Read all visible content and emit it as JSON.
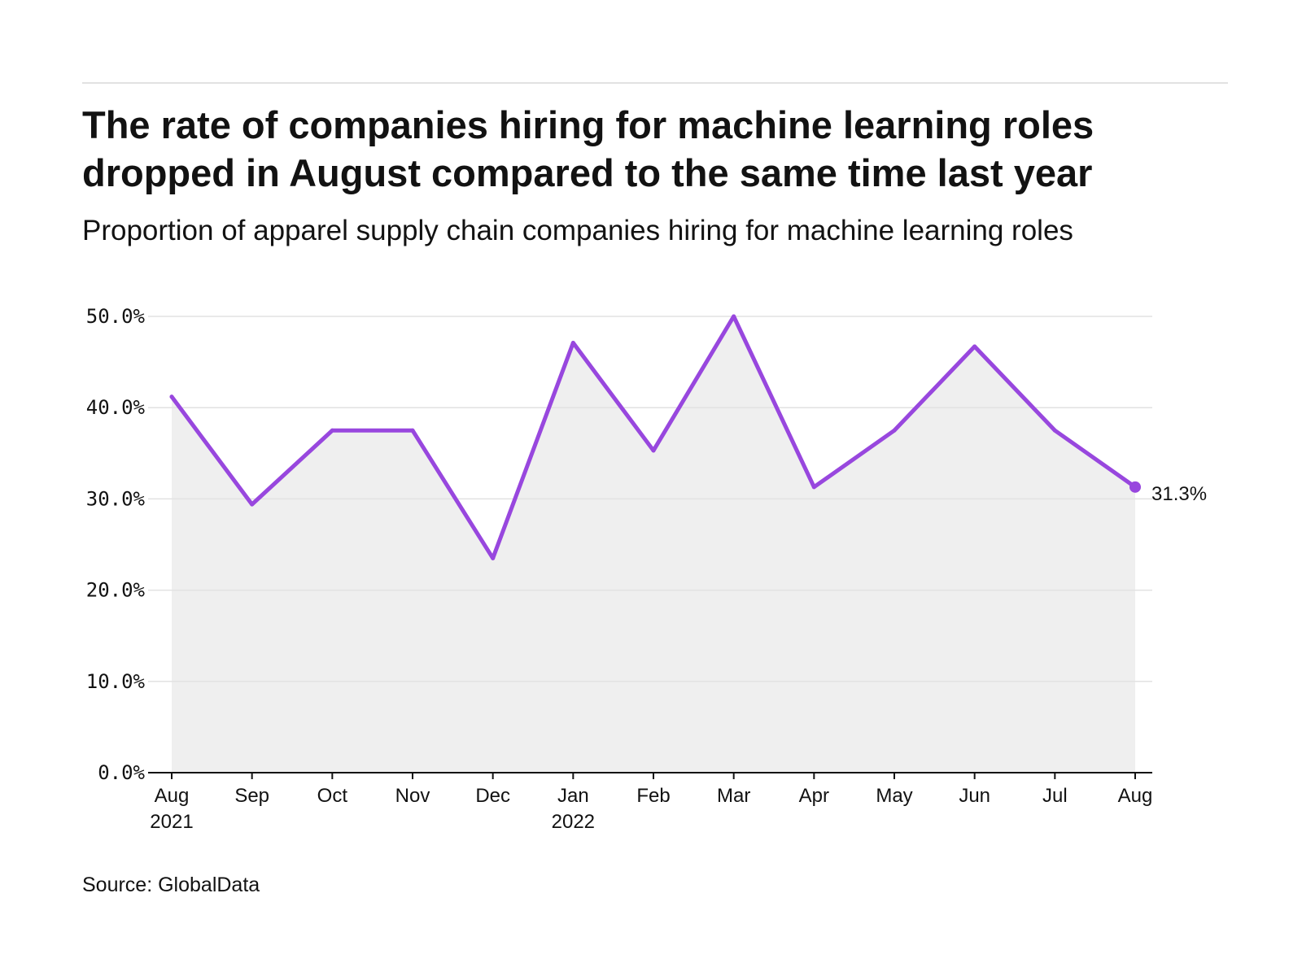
{
  "header": {
    "title": "The rate of companies hiring for machine learning roles dropped in August compared to the same time last year",
    "subtitle": "Proportion of apparel supply chain companies hiring for machine learning roles"
  },
  "footer": {
    "source": "Source: GlobalData"
  },
  "chart_data": {
    "type": "area",
    "title": "The rate of companies hiring for machine learning roles dropped in August compared to the same time last year",
    "subtitle": "Proportion of apparel supply chain companies hiring for machine learning roles",
    "x_tick_labels": [
      {
        "month": "Aug",
        "year": "2021"
      },
      {
        "month": "Sep",
        "year": ""
      },
      {
        "month": "Oct",
        "year": ""
      },
      {
        "month": "Nov",
        "year": ""
      },
      {
        "month": "Dec",
        "year": ""
      },
      {
        "month": "Jan",
        "year": "2022"
      },
      {
        "month": "Feb",
        "year": ""
      },
      {
        "month": "Mar",
        "year": ""
      },
      {
        "month": "Apr",
        "year": ""
      },
      {
        "month": "May",
        "year": ""
      },
      {
        "month": "Jun",
        "year": ""
      },
      {
        "month": "Jul",
        "year": ""
      },
      {
        "month": "Aug",
        "year": ""
      }
    ],
    "series": [
      {
        "values": [
          41.2,
          29.4,
          37.5,
          37.5,
          23.5,
          47.1,
          35.3,
          50.0,
          31.3,
          37.5,
          46.7,
          37.5,
          31.3
        ]
      }
    ],
    "ylim": [
      0,
      50
    ],
    "y_ticks": [
      0,
      10,
      20,
      30,
      40,
      50
    ],
    "y_tick_labels": [
      "0.0%",
      "10.0%",
      "20.0%",
      "30.0%",
      "40.0%",
      "50.0%"
    ],
    "end_label": "31.3%",
    "grid": true,
    "legend": "none",
    "colors": {
      "line": "#9847de",
      "area": "#efefef",
      "grid": "#e2e2e2",
      "axis": "#121212",
      "text": "#121212"
    }
  }
}
